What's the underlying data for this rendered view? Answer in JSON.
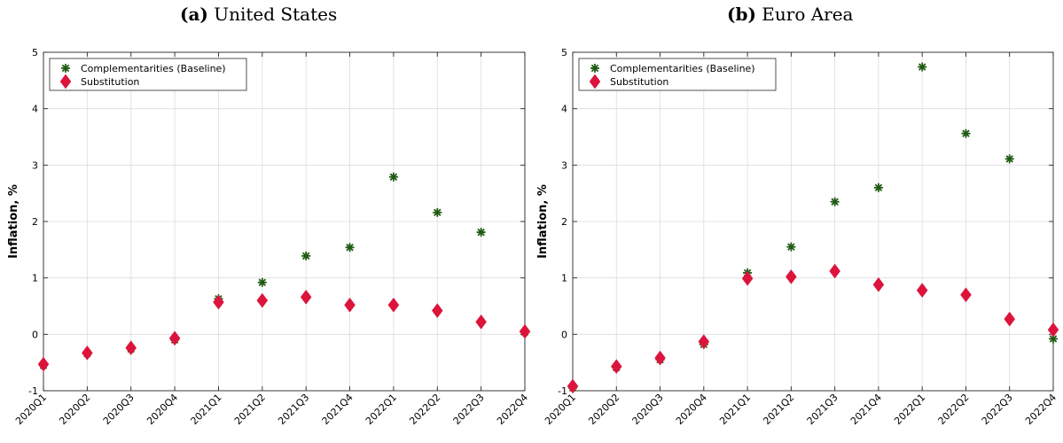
{
  "chart_data": [
    {
      "type": "scatter",
      "panel_letter": "(a)",
      "title": "United States",
      "xlabel": "",
      "ylabel": "Inflation, %",
      "categories": [
        "2020Q1",
        "2020Q2",
        "2020Q3",
        "2020Q4",
        "2021Q1",
        "2021Q2",
        "2021Q3",
        "2021Q4",
        "2022Q1",
        "2022Q2",
        "2022Q3",
        "2022Q4"
      ],
      "ylim": [
        -1,
        5
      ],
      "yticks": [
        -1,
        0,
        1,
        2,
        3,
        4,
        5
      ],
      "grid": true,
      "legend_position": "top-left",
      "series": [
        {
          "name": "Complementarities (Baseline)",
          "marker": "asterisk",
          "color": "#1f5b12",
          "values": [
            -0.55,
            -0.34,
            -0.26,
            -0.1,
            0.63,
            0.92,
            1.39,
            1.54,
            2.79,
            2.16,
            1.81,
            0.04
          ]
        },
        {
          "name": "Substitution",
          "marker": "diamond",
          "color": "#dc143c",
          "values": [
            -0.53,
            -0.33,
            -0.24,
            -0.07,
            0.57,
            0.6,
            0.66,
            0.52,
            0.52,
            0.42,
            0.22,
            0.05
          ]
        }
      ]
    },
    {
      "type": "scatter",
      "panel_letter": "(b)",
      "title": "Euro Area",
      "xlabel": "",
      "ylabel": "Inflation, %",
      "categories": [
        "2020Q1",
        "2020Q2",
        "2020Q3",
        "2020Q4",
        "2021Q1",
        "2021Q2",
        "2021Q3",
        "2021Q4",
        "2022Q1",
        "2022Q2",
        "2022Q3",
        "2022Q4"
      ],
      "ylim": [
        -1,
        5
      ],
      "yticks": [
        -1,
        0,
        1,
        2,
        3,
        4,
        5
      ],
      "grid": true,
      "legend_position": "top-left",
      "series": [
        {
          "name": "Complementarities (Baseline)",
          "marker": "asterisk",
          "color": "#1f5b12",
          "values": [
            -0.95,
            -0.59,
            -0.45,
            -0.18,
            1.09,
            1.55,
            2.35,
            2.6,
            4.74,
            3.56,
            3.11,
            -0.08
          ]
        },
        {
          "name": "Substitution",
          "marker": "diamond",
          "color": "#dc143c",
          "values": [
            -0.92,
            -0.57,
            -0.42,
            -0.13,
            0.99,
            1.02,
            1.12,
            0.88,
            0.78,
            0.7,
            0.27,
            0.08
          ]
        }
      ]
    }
  ]
}
